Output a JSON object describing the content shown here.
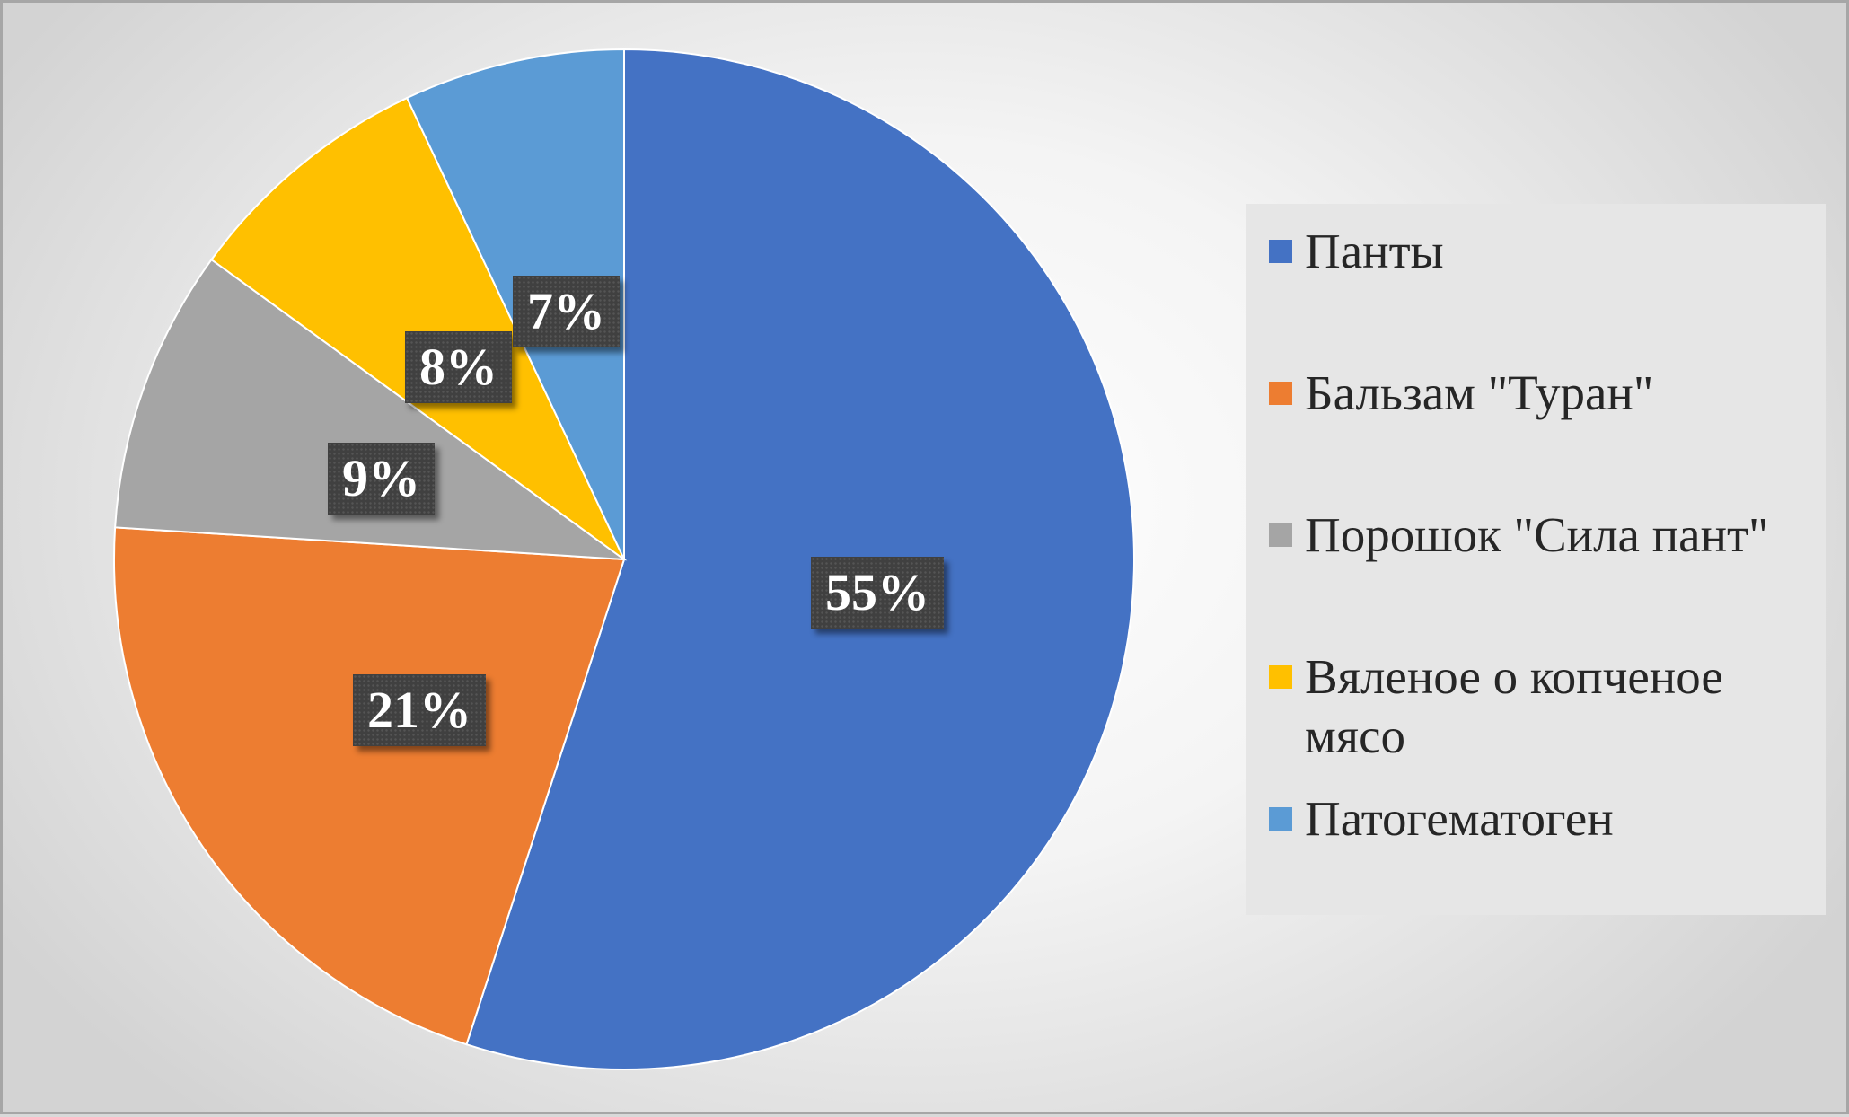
{
  "chart_data": {
    "type": "pie",
    "title": "",
    "legend_position": "right",
    "slices": [
      {
        "name": "Панты",
        "value": 55,
        "label": "55%",
        "color": "#4472c4"
      },
      {
        "name": "Бальзам \"Туран\"",
        "value": 21,
        "label": "21%",
        "color": "#ed7d31"
      },
      {
        "name": "Порошок \"Сила пант\"",
        "value": 9,
        "label": "9%",
        "color": "#a5a5a5"
      },
      {
        "name": "Вяленое о копченое мясо",
        "value": 8,
        "label": "8%",
        "color": "#ffc000"
      },
      {
        "name": "Патогематоген",
        "value": 7,
        "label": "7%",
        "color": "#5b9bd5"
      }
    ]
  }
}
